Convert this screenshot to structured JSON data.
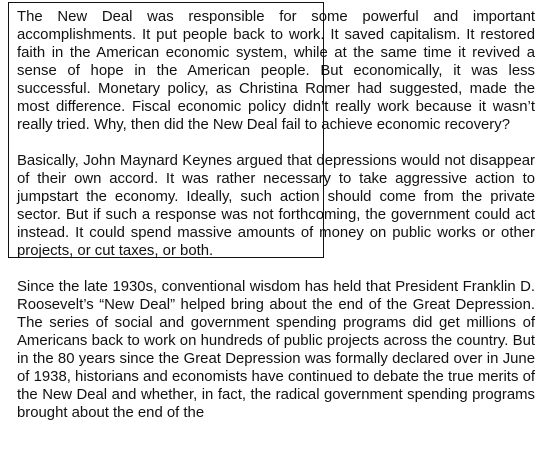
{
  "document": {
    "paragraphs": [
      "The New Deal was responsible for some powerful and important accomplishments. It put people back to work. It saved capitalism. It restored faith in the American economic system, while at the same time it revived a sense of hope in the American people. But economically, it was less successful. Monetary policy, as Christina Romer had suggested, made the most difference. Fiscal economic policy didn’t really work because it wasn’t really tried. Why, then did the New Deal fail to achieve economic recovery?",
      "Basically, John Maynard Keynes argued that depressions would not disappear of their own accord. It was rather necessary to take aggressive action to jumpstart the economy. Ideally, such action should come from the private sector. But if such a response was not forthcoming, the government could act instead. It could spend massive amounts of money on public works or other projects, or cut taxes, or both.",
      "Since the late 1930s, conventional wisdom has held that President Franklin D. Roosevelt’s “New Deal” helped bring about the end of the Great Depression. The series of social and government spending programs did get millions of Americans back to work on hundreds of public projects across the country. But in the 80 years since the Great Depression was formally declared over in June of 1938, historians and economists have continued to debate the true merits of the New Deal and whether, in fact, the radical government spending programs brought about the end of the"
    ]
  }
}
